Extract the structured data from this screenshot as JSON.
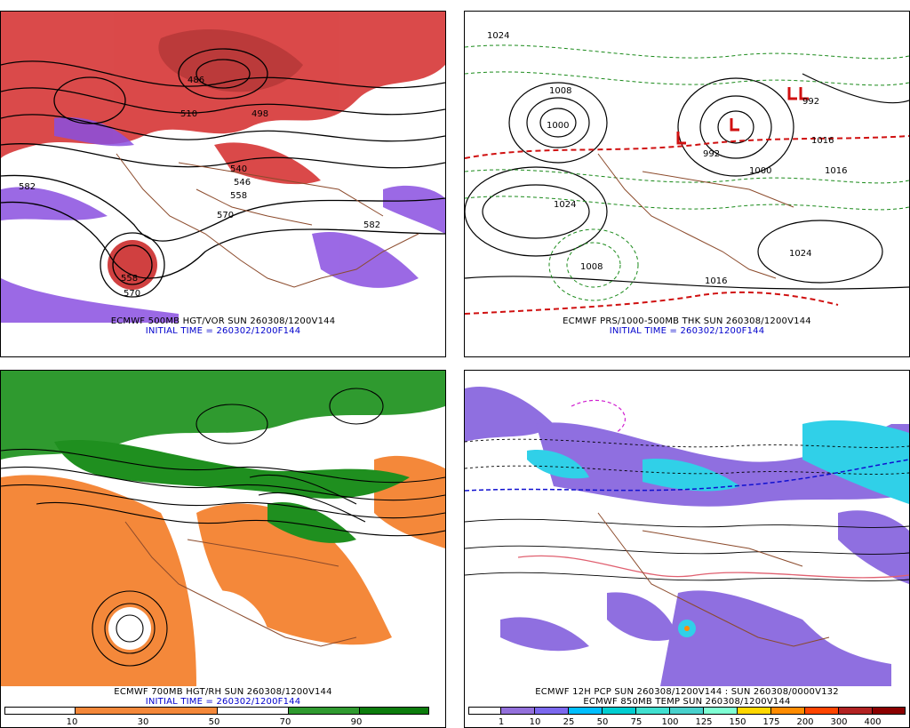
{
  "panels": {
    "top_left": {
      "caption": "ECMWF 500MB HGT/VOR SUN 260308/1200V144",
      "initial": "INITIAL TIME = 260302/1200F144",
      "labels": [
        "498",
        "486",
        "510",
        "540",
        "546",
        "558",
        "570",
        "582",
        "582",
        "570",
        "558"
      ]
    },
    "top_right": {
      "caption": "ECMWF PRS/1000-500MB THK SUN 260308/1200V144",
      "initial": "INITIAL TIME = 260302/1200F144",
      "labels": [
        "1024",
        "1024",
        "1008",
        "1016",
        "1016",
        "1000",
        "992",
        "1008",
        "1000",
        "992",
        "1024",
        "1016"
      ]
    },
    "bottom_left": {
      "caption": "ECMWF 700MB HGT/RH SUN 260308/1200V144",
      "initial": "INITIAL TIME = 260302/1200F144",
      "colorbar": {
        "ticks": [
          "10",
          "30",
          "50",
          "70",
          "90"
        ],
        "colors": [
          "#ffffff",
          "#f4883a",
          "#f4883a",
          "#ffffff",
          "#ffffff",
          "#2f9a2f",
          "#0c7c0c"
        ]
      }
    },
    "bottom_right": {
      "caption": "ECMWF 12H PCP SUN 260308/1200V144 : SUN 260308/0000V132",
      "caption2": "ECMWF 850MB TEMP SUN 260308/1200V144",
      "colorbar": {
        "ticks": [
          "1",
          "10",
          "25",
          "50",
          "75",
          "100",
          "125",
          "150",
          "175",
          "200",
          "300",
          "400"
        ],
        "colors": [
          "#ffffff",
          "#9370db",
          "#7b68ee",
          "#00bfff",
          "#00ced1",
          "#40e0d0",
          "#48d1cc",
          "#7fffd4",
          "#ffd700",
          "#ff8c00",
          "#ff4500",
          "#b22222",
          "#8b0000"
        ]
      }
    }
  },
  "colors": {
    "vorticity": "#d42a2a",
    "vorticity_neg": "#8a4fe0",
    "rh_dry": "#f4883a",
    "rh_moist": "#1f8f1f",
    "thickness": "#1a8a1a",
    "thickness_542": "#d01010",
    "precip": "#8f6fe0",
    "precip_heavy": "#30d0e8",
    "coast": "#8b4a2b"
  }
}
